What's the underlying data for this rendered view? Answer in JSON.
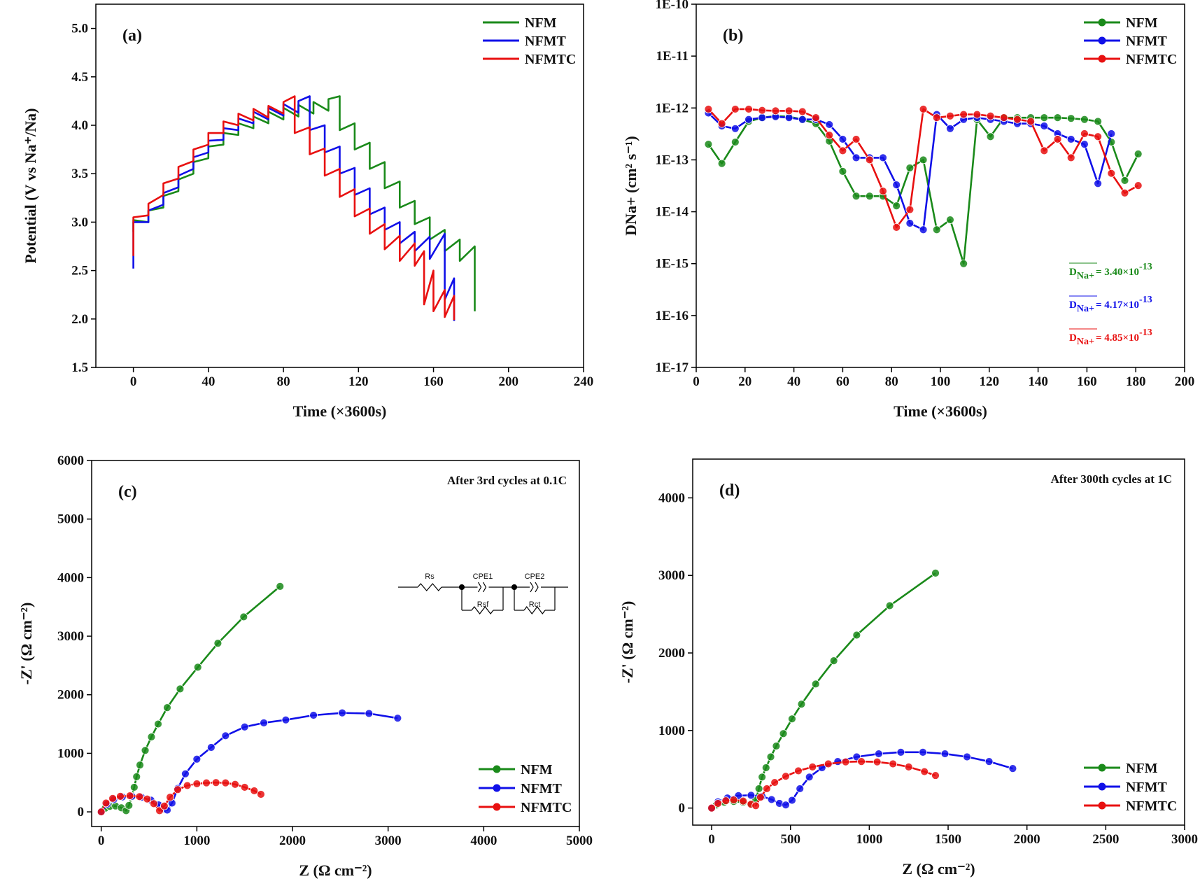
{
  "chart_data": [
    {
      "type": "line",
      "label": "(a)",
      "xlabel": "Time (×3600s)",
      "ylabel": "Potential (V vs Na⁺/Na)",
      "xlim": [
        -20,
        240
      ],
      "xticks": [
        0,
        40,
        80,
        120,
        160,
        200,
        240
      ],
      "ylim": [
        1.5,
        5.25
      ],
      "yticks": [
        1.5,
        {
          "value": 2,
          "label": "2.0"
        },
        2.5,
        {
          "value": 3,
          "label": "3.0"
        },
        3.5,
        {
          "value": 4,
          "label": "4.0"
        },
        4.5,
        {
          "value": 5,
          "label": "5.0"
        }
      ],
      "legend": "upper right",
      "markers": false,
      "series": [
        {
          "name": "NFM",
          "color": "#1a8a1a",
          "x": [
            0,
            0,
            8,
            8,
            16,
            16,
            24,
            24,
            32,
            32,
            40,
            40,
            48,
            48,
            56,
            56,
            64,
            64,
            72,
            72,
            80,
            80,
            88,
            88,
            96,
            96,
            104,
            104,
            110,
            110,
            118,
            118,
            126,
            126,
            134,
            134,
            142,
            142,
            150,
            150,
            158,
            158,
            166,
            166,
            174,
            174,
            182,
            182
          ],
          "y": [
            2.9,
            3.02,
            3.0,
            3.12,
            3.15,
            3.27,
            3.32,
            3.44,
            3.5,
            3.62,
            3.66,
            3.78,
            3.8,
            3.92,
            3.9,
            4.02,
            3.97,
            4.09,
            4.02,
            4.14,
            4.06,
            4.18,
            4.09,
            4.21,
            4.12,
            4.24,
            4.15,
            4.27,
            4.3,
            3.95,
            4.02,
            3.75,
            3.82,
            3.55,
            3.62,
            3.35,
            3.42,
            3.15,
            3.22,
            2.98,
            3.05,
            2.82,
            2.92,
            2.7,
            2.82,
            2.6,
            2.75,
            2.08
          ]
        },
        {
          "name": "NFMT",
          "color": "#1010e8",
          "x": [
            0,
            0,
            8,
            8,
            16,
            16,
            24,
            24,
            32,
            32,
            40,
            40,
            48,
            48,
            56,
            56,
            64,
            64,
            72,
            72,
            80,
            80,
            88,
            88,
            94,
            94,
            102,
            102,
            110,
            110,
            118,
            118,
            126,
            126,
            134,
            134,
            142,
            142,
            150,
            150,
            158,
            158,
            166,
            166,
            171,
            171
          ],
          "y": [
            2.52,
            3.0,
            3.0,
            3.12,
            3.18,
            3.3,
            3.36,
            3.48,
            3.55,
            3.67,
            3.72,
            3.84,
            3.85,
            3.97,
            3.95,
            4.07,
            4.02,
            4.14,
            4.06,
            4.18,
            4.1,
            4.22,
            4.13,
            4.25,
            4.3,
            3.95,
            4.0,
            3.72,
            3.78,
            3.5,
            3.56,
            3.28,
            3.35,
            3.08,
            3.15,
            2.92,
            3.0,
            2.78,
            2.9,
            2.7,
            2.85,
            2.62,
            2.88,
            2.2,
            2.42,
            1.98
          ]
        },
        {
          "name": "NFMTC",
          "color": "#e81010",
          "x": [
            0,
            0,
            8,
            8,
            16,
            16,
            24,
            24,
            32,
            32,
            40,
            40,
            48,
            48,
            56,
            56,
            64,
            64,
            72,
            72,
            80,
            80,
            86,
            86,
            94,
            94,
            102,
            102,
            110,
            110,
            118,
            118,
            126,
            126,
            134,
            134,
            142,
            142,
            150,
            150,
            155,
            155,
            160,
            160,
            166,
            166,
            171,
            171
          ],
          "y": [
            2.65,
            3.05,
            3.07,
            3.19,
            3.28,
            3.4,
            3.45,
            3.57,
            3.63,
            3.75,
            3.8,
            3.92,
            3.92,
            4.04,
            4.0,
            4.12,
            4.05,
            4.17,
            4.08,
            4.2,
            4.12,
            4.24,
            4.3,
            3.92,
            3.98,
            3.7,
            3.76,
            3.48,
            3.55,
            3.26,
            3.34,
            3.06,
            3.14,
            2.88,
            2.98,
            2.72,
            2.86,
            2.6,
            2.78,
            2.55,
            2.7,
            2.15,
            2.5,
            2.08,
            2.3,
            2.02,
            2.24,
            1.99
          ]
        }
      ]
    },
    {
      "type": "line",
      "label": "(b)",
      "xlabel": "Time (×3600s)",
      "ylabel": "DNa+ (cm² s⁻¹)",
      "log_y": true,
      "xlim": [
        0,
        200
      ],
      "xticks": [
        0,
        20,
        40,
        60,
        80,
        100,
        120,
        140,
        160,
        180,
        200
      ],
      "ylim": [
        1e-17,
        1e-10
      ],
      "yticks": [
        {
          "value": 1e-17,
          "label": "1E-17"
        },
        {
          "value": 1e-16,
          "label": "1E-16"
        },
        {
          "value": 1e-15,
          "label": "1E-15"
        },
        {
          "value": 1e-14,
          "label": "1E-14"
        },
        {
          "value": 1e-13,
          "label": "1E-13"
        },
        {
          "value": 1e-12,
          "label": "1E-12"
        },
        {
          "value": 1e-11,
          "label": "1E-11"
        },
        {
          "value": 1e-10,
          "label": "1E-10"
        }
      ],
      "legend": "upper right",
      "markers": true,
      "series": [
        {
          "name": "NFM",
          "color": "#1a8a1a",
          "x": [
            5,
            10.5,
            16,
            21.5,
            27,
            32.5,
            38,
            43.5,
            49,
            54.5,
            60,
            65.5,
            71,
            76.5,
            82,
            87.5,
            93,
            98.5,
            104,
            109.5,
            115,
            120.5,
            126,
            131.5,
            137,
            142.5,
            148,
            153.5,
            159,
            164.5,
            170,
            175.5,
            181
          ],
          "y": [
            2e-13,
            8.5e-14,
            2.2e-13,
            5.5e-13,
            6.5e-13,
            7e-13,
            6.8e-13,
            6e-13,
            5e-13,
            2.3e-13,
            6e-14,
            2e-14,
            2e-14,
            2e-14,
            1.3e-14,
            7e-14,
            1e-13,
            4.5e-15,
            7e-15,
            1e-15,
            6e-13,
            2.8e-13,
            6.5e-13,
            6.5e-13,
            6.5e-13,
            6.5e-13,
            6.5e-13,
            6.3e-13,
            6e-13,
            5.5e-13,
            2.2e-13,
            4e-14,
            1.3e-13
          ]
        },
        {
          "name": "NFMT",
          "color": "#1010e8",
          "x": [
            5,
            10.5,
            16,
            21.5,
            27,
            32.5,
            38,
            43.5,
            49,
            54.5,
            60,
            65.5,
            71,
            76.5,
            82,
            87.5,
            93,
            98.5,
            104,
            109.5,
            115,
            120.5,
            126,
            131.5,
            137,
            142.5,
            148,
            153.5,
            159,
            164.5,
            170
          ],
          "y": [
            8e-13,
            4.5e-13,
            4e-13,
            6e-13,
            6.5e-13,
            6.8e-13,
            6.5e-13,
            6e-13,
            6e-13,
            4.8e-13,
            2.5e-13,
            1.1e-13,
            1.1e-13,
            1.1e-13,
            3.3e-14,
            6e-15,
            4.5e-15,
            7.5e-13,
            4e-13,
            6e-13,
            6.5e-13,
            6e-13,
            5.5e-13,
            5e-13,
            5e-13,
            4.5e-13,
            3.2e-13,
            2.5e-13,
            2e-13,
            3.5e-14,
            3.2e-13
          ]
        },
        {
          "name": "NFMTC",
          "color": "#e81010",
          "x": [
            5,
            10.5,
            16,
            21.5,
            27,
            32.5,
            38,
            43.5,
            49,
            54.5,
            60,
            65.5,
            71,
            76.5,
            82,
            87.5,
            93,
            98.5,
            104,
            109.5,
            115,
            120.5,
            126,
            131.5,
            137,
            142.5,
            148,
            153.5,
            159,
            164.5,
            170,
            175.5,
            181
          ],
          "y": [
            9.5e-13,
            5e-13,
            9.5e-13,
            9.5e-13,
            9e-13,
            8.8e-13,
            8.8e-13,
            8.5e-13,
            6.5e-13,
            3e-13,
            1.5e-13,
            2.5e-13,
            1e-13,
            2.5e-14,
            5e-15,
            1.1e-14,
            9.5e-13,
            6.5e-13,
            7e-13,
            7.5e-13,
            7.5e-13,
            7e-13,
            6.5e-13,
            6e-13,
            5.5e-13,
            1.5e-13,
            2.5e-13,
            1.1e-13,
            3.2e-13,
            2.8e-13,
            5.5e-14,
            2.3e-14,
            3.2e-14
          ]
        }
      ],
      "annotations": [
        {
          "symbol": "D",
          "subscript": "Na+",
          "text": "= 3.40×10",
          "superscript": "-13",
          "color": "#1a8a1a"
        },
        {
          "symbol": "D",
          "subscript": "Na+",
          "text": "= 4.17×10",
          "superscript": "-13",
          "color": "#1010e8"
        },
        {
          "symbol": "D",
          "subscript": "Na+",
          "text": "= 4.85×10",
          "superscript": "-13",
          "color": "#e81010"
        }
      ]
    },
    {
      "type": "line",
      "label": "(c)",
      "note": "After 3rd cycles at 0.1C",
      "xlabel": "Z (Ω cm⁻²)",
      "ylabel": "-Z' (Ω cm⁻²)",
      "xlim": [
        -100,
        5000
      ],
      "xticks": [
        0,
        1000,
        2000,
        3000,
        4000,
        5000
      ],
      "ylim": [
        -250,
        6000
      ],
      "yticks": [
        0,
        1000,
        2000,
        3000,
        4000,
        5000,
        6000
      ],
      "legend": "lower right",
      "markers": true,
      "circuit": [
        "Rs",
        "CPE1",
        "Rsf",
        "CPE2",
        "Rct"
      ],
      "series": [
        {
          "name": "NFM",
          "color": "#1a8a1a",
          "x": [
            0,
            40,
            90,
            150,
            210,
            260,
            290,
            320,
            345,
            370,
            405,
            460,
            525,
            595,
            690,
            825,
            1010,
            1220,
            1490,
            1870
          ],
          "y": [
            0,
            60,
            95,
            100,
            70,
            20,
            110,
            260,
            420,
            600,
            800,
            1050,
            1280,
            1500,
            1780,
            2100,
            2470,
            2880,
            3330,
            3850
          ]
        },
        {
          "name": "NFMT",
          "color": "#1010e8",
          "x": [
            0,
            60,
            130,
            220,
            320,
            420,
            520,
            600,
            650,
            690,
            740,
            800,
            880,
            1000,
            1150,
            1300,
            1500,
            1700,
            1930,
            2220,
            2520,
            2800,
            3100
          ],
          "y": [
            0,
            130,
            210,
            255,
            265,
            250,
            200,
            120,
            50,
            30,
            150,
            400,
            650,
            900,
            1100,
            1300,
            1450,
            1520,
            1570,
            1650,
            1690,
            1680,
            1600
          ]
        },
        {
          "name": "NFMTC",
          "color": "#e81010",
          "x": [
            0,
            50,
            120,
            200,
            300,
            400,
            480,
            550,
            610,
            660,
            720,
            800,
            900,
            1000,
            1100,
            1200,
            1300,
            1400,
            1500,
            1600,
            1670
          ],
          "y": [
            0,
            150,
            230,
            265,
            275,
            260,
            220,
            140,
            20,
            100,
            250,
            380,
            450,
            480,
            495,
            500,
            495,
            470,
            420,
            360,
            300
          ]
        }
      ]
    },
    {
      "type": "line",
      "label": "(d)",
      "note": "After 300th cycles at 1C",
      "xlabel": "Z (Ω cm⁻²)",
      "ylabel": "-Z' (Ω cm⁻²)",
      "xlim": [
        -120,
        3000
      ],
      "xticks": [
        0,
        500,
        1000,
        1500,
        2000,
        2500,
        3000
      ],
      "ylim": [
        -220,
        4500
      ],
      "yticks": [
        0,
        1000,
        2000,
        3000,
        4000
      ],
      "legend": "lower right",
      "markers": true,
      "series": [
        {
          "name": "NFM",
          "color": "#1a8a1a",
          "x": [
            0,
            30,
            80,
            140,
            200,
            250,
            280,
            300,
            320,
            345,
            375,
            410,
            455,
            510,
            570,
            660,
            775,
            920,
            1130,
            1420
          ],
          "y": [
            0,
            40,
            75,
            85,
            75,
            45,
            100,
            250,
            400,
            520,
            660,
            800,
            960,
            1150,
            1340,
            1600,
            1900,
            2230,
            2610,
            3030
          ]
        },
        {
          "name": "NFMT",
          "color": "#1010e8",
          "x": [
            0,
            40,
            100,
            170,
            250,
            320,
            380,
            430,
            470,
            510,
            560,
            620,
            700,
            800,
            920,
            1060,
            1200,
            1340,
            1480,
            1620,
            1760,
            1910
          ],
          "y": [
            0,
            80,
            130,
            160,
            165,
            150,
            110,
            60,
            40,
            100,
            250,
            400,
            520,
            600,
            660,
            700,
            720,
            720,
            700,
            660,
            600,
            510
          ]
        },
        {
          "name": "NFMTC",
          "color": "#e81010",
          "x": [
            0,
            40,
            90,
            140,
            200,
            250,
            280,
            310,
            350,
            400,
            470,
            550,
            640,
            740,
            850,
            950,
            1050,
            1150,
            1250,
            1350,
            1420
          ],
          "y": [
            0,
            60,
            95,
            105,
            90,
            50,
            30,
            140,
            250,
            330,
            410,
            480,
            530,
            570,
            595,
            600,
            595,
            570,
            530,
            470,
            420
          ]
        }
      ]
    }
  ]
}
